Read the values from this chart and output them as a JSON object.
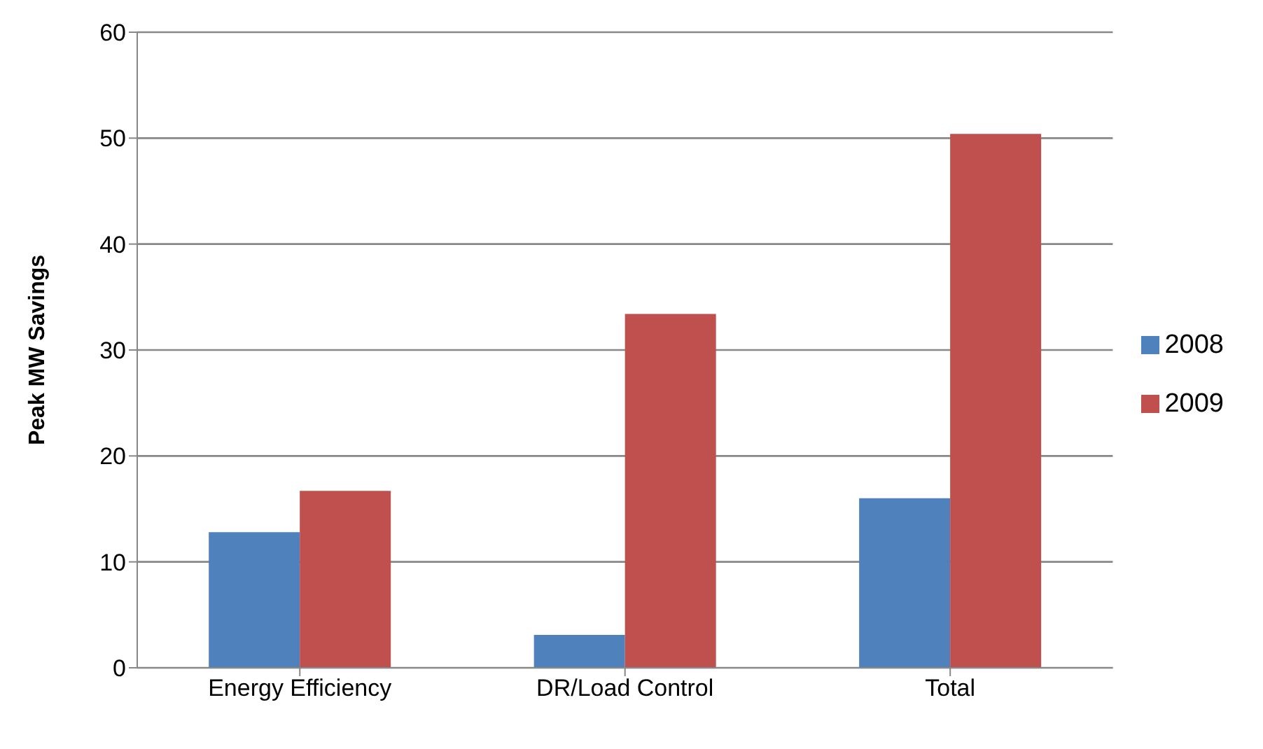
{
  "chart_data": {
    "type": "bar",
    "ylabel": "Peak MW Savings",
    "categories": [
      "Energy Efficiency",
      "DR/Load Control",
      "Total"
    ],
    "series": [
      {
        "name": "2008",
        "color": "#4f81bd",
        "values": [
          12.8,
          3.1,
          16.0
        ]
      },
      {
        "name": "2009",
        "color": "#c0504d",
        "values": [
          16.7,
          33.4,
          50.4
        ]
      }
    ],
    "ylim": [
      0,
      60
    ],
    "yticks": [
      0,
      10,
      20,
      30,
      40,
      50,
      60
    ],
    "grid": "y",
    "legend": "right"
  }
}
